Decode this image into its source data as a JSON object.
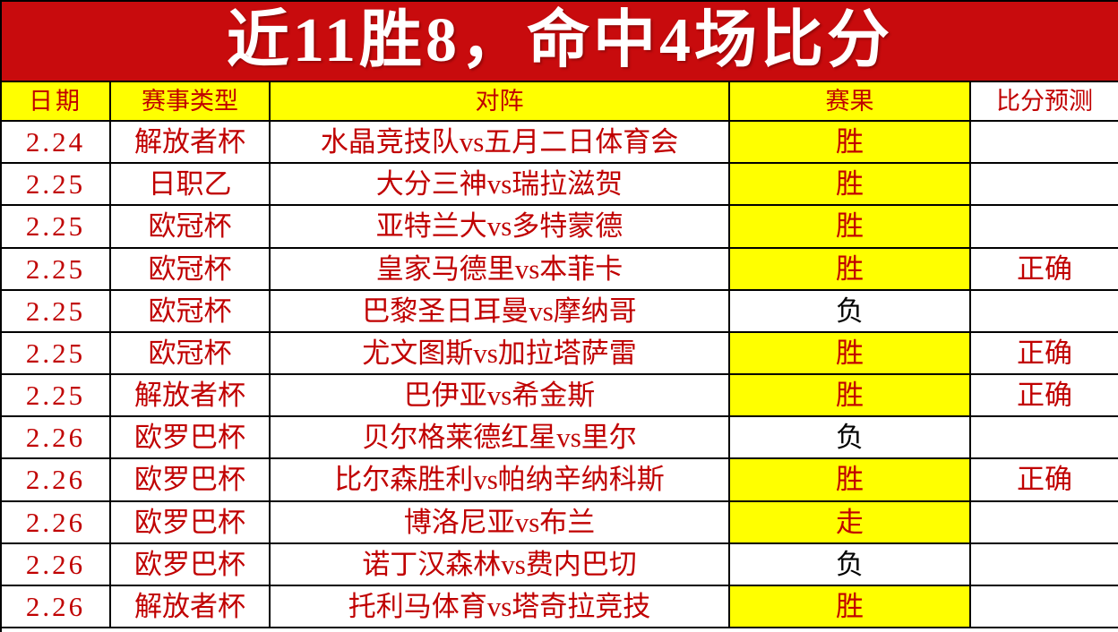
{
  "banner": {
    "title": "近11胜8，命中4场比分",
    "bg_color": "#c80b0d",
    "text_color": "#ffffff"
  },
  "table": {
    "headers": [
      "日期",
      "赛事类型",
      "对阵",
      "赛果",
      "比分预测"
    ],
    "header_bg_color": "#ffff00",
    "header_text_color": "#c00000",
    "win_bg_color": "#ffff00",
    "win_text_color": "#c00000",
    "loss_bg_color": "#ffffff",
    "loss_text_color": "#000000",
    "rows": [
      {
        "date": "2.24",
        "league": "解放者杯",
        "matchup": "水晶竞技队vs五月二日体育会",
        "result": "胜",
        "result_type": "win",
        "prediction": ""
      },
      {
        "date": "2.25",
        "league": "日职乙",
        "matchup": "大分三神vs瑞拉滋贺",
        "result": "胜",
        "result_type": "win",
        "prediction": ""
      },
      {
        "date": "2.25",
        "league": "欧冠杯",
        "matchup": "亚特兰大vs多特蒙德",
        "result": "胜",
        "result_type": "win",
        "prediction": ""
      },
      {
        "date": "2.25",
        "league": "欧冠杯",
        "matchup": "皇家马德里vs本菲卡",
        "result": "胜",
        "result_type": "win",
        "prediction": "正确"
      },
      {
        "date": "2.25",
        "league": "欧冠杯",
        "matchup": "巴黎圣日耳曼vs摩纳哥",
        "result": "负",
        "result_type": "loss",
        "prediction": ""
      },
      {
        "date": "2.25",
        "league": "欧冠杯",
        "matchup": "尤文图斯vs加拉塔萨雷",
        "result": "胜",
        "result_type": "win",
        "prediction": "正确"
      },
      {
        "date": "2.25",
        "league": "解放者杯",
        "matchup": "巴伊亚vs希金斯",
        "result": "胜",
        "result_type": "win",
        "prediction": "正确"
      },
      {
        "date": "2.26",
        "league": "欧罗巴杯",
        "matchup": "贝尔格莱德红星vs里尔",
        "result": "负",
        "result_type": "loss",
        "prediction": ""
      },
      {
        "date": "2.26",
        "league": "欧罗巴杯",
        "matchup": "比尔森胜利vs帕纳辛纳科斯",
        "result": "胜",
        "result_type": "win",
        "prediction": "正确"
      },
      {
        "date": "2.26",
        "league": "欧罗巴杯",
        "matchup": "博洛尼亚vs布兰",
        "result": "走",
        "result_type": "push",
        "prediction": ""
      },
      {
        "date": "2.26",
        "league": "欧罗巴杯",
        "matchup": "诺丁汉森林vs费内巴切",
        "result": "负",
        "result_type": "loss",
        "prediction": ""
      },
      {
        "date": "2.26",
        "league": "解放者杯",
        "matchup": "托利马体育vs塔奇拉竞技",
        "result": "胜",
        "result_type": "win",
        "prediction": ""
      }
    ]
  }
}
